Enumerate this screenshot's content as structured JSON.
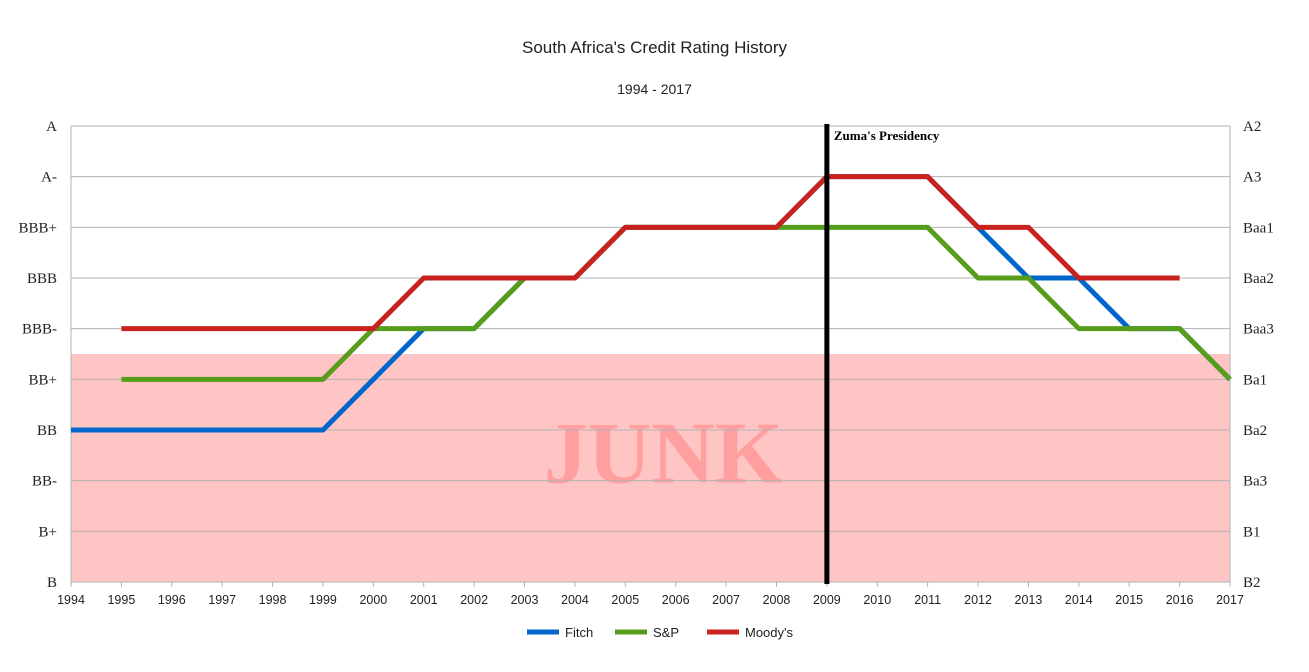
{
  "chart_data": {
    "type": "line",
    "title": "South Africa's Credit Rating History",
    "subtitle": "1994 - 2017",
    "x_categories": [
      "1994",
      "1995",
      "1996",
      "1997",
      "1998",
      "1999",
      "2000",
      "2001",
      "2002",
      "2003",
      "2004",
      "2005",
      "2006",
      "2007",
      "2008",
      "2009",
      "2010",
      "2011",
      "2012",
      "2013",
      "2014",
      "2015",
      "2016",
      "2017"
    ],
    "y_left_labels": [
      "B",
      "B+",
      "BB-",
      "BB",
      "BB+",
      "BBB-",
      "BBB",
      "BBB+",
      "A-",
      "A"
    ],
    "y_right_labels": [
      "B2",
      "B1",
      "Ba3",
      "Ba2",
      "Ba1",
      "Baa3",
      "Baa2",
      "Baa1",
      "A3",
      "A2"
    ],
    "ylim": [
      0,
      9
    ],
    "grid": true,
    "legend_position": "bottom",
    "junk_region": {
      "label": "JUNK",
      "y_from": 0,
      "y_to": 4.5,
      "color": "#ffc5c5",
      "text_color": "#ff9f9f"
    },
    "annotation": {
      "label": "Zuma's Presidency",
      "x": "2009",
      "color": "#000000"
    },
    "series": [
      {
        "name": "Fitch",
        "color": "#0066cc",
        "points": [
          [
            "1994",
            3
          ],
          [
            "1999",
            3
          ],
          [
            "2001",
            5
          ],
          [
            "2002",
            5
          ],
          [
            "2003",
            6
          ],
          [
            "2004",
            6
          ],
          [
            "2005",
            7
          ],
          [
            "2008",
            7
          ],
          [
            "2009",
            8
          ],
          [
            "2011",
            8
          ],
          [
            "2012",
            7
          ],
          [
            "2013",
            6
          ],
          [
            "2014",
            6
          ],
          [
            "2015",
            5
          ],
          [
            "2016",
            5
          ],
          [
            "2017",
            4
          ]
        ]
      },
      {
        "name": "S&P",
        "color": "#579d1c",
        "points": [
          [
            "1995",
            4
          ],
          [
            "1999",
            4
          ],
          [
            "2000",
            5
          ],
          [
            "2002",
            5
          ],
          [
            "2003",
            6
          ],
          [
            "2004",
            6
          ],
          [
            "2005",
            7
          ],
          [
            "2011",
            7
          ],
          [
            "2012",
            6
          ],
          [
            "2013",
            6
          ],
          [
            "2014",
            5
          ],
          [
            "2016",
            5
          ],
          [
            "2017",
            4
          ]
        ]
      },
      {
        "name": "Moody's",
        "color": "#c9211e",
        "points": [
          [
            "1995",
            5
          ],
          [
            "2000",
            5
          ],
          [
            "2001",
            6
          ],
          [
            "2004",
            6
          ],
          [
            "2005",
            7
          ],
          [
            "2008",
            7
          ],
          [
            "2009",
            8
          ],
          [
            "2011",
            8
          ],
          [
            "2012",
            7
          ],
          [
            "2013",
            7
          ],
          [
            "2014",
            6
          ],
          [
            "2016",
            6
          ]
        ]
      }
    ]
  }
}
